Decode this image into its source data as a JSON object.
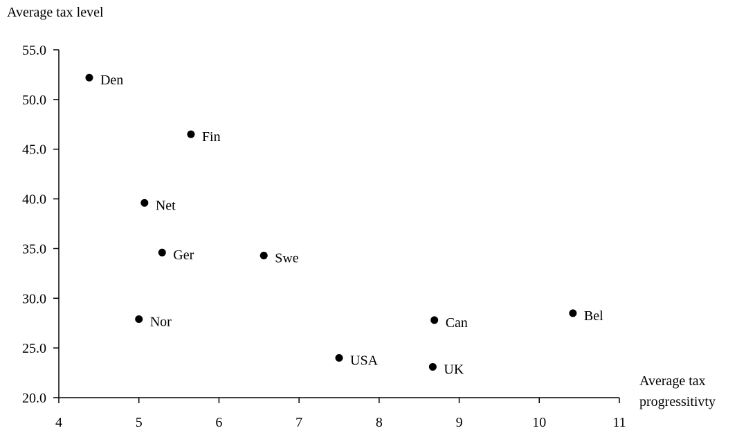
{
  "chart_data": {
    "type": "scatter",
    "ylabel": "Average tax level",
    "xlabel_lines": [
      "Average tax",
      "progressitivty"
    ],
    "xlim": [
      4,
      11
    ],
    "ylim": [
      20,
      55
    ],
    "x_ticks": [
      "4",
      "5",
      "6",
      "7",
      "8",
      "9",
      "10",
      "11"
    ],
    "y_ticks": [
      "20.0",
      "25.0",
      "30.0",
      "35.0",
      "40.0",
      "45.0",
      "50.0",
      "55.0"
    ],
    "grid": false,
    "points": [
      {
        "label": "Den",
        "x": 4.38,
        "y": 52.2
      },
      {
        "label": "Fin",
        "x": 5.65,
        "y": 46.5
      },
      {
        "label": "Net",
        "x": 5.07,
        "y": 39.6
      },
      {
        "label": "Ger",
        "x": 5.29,
        "y": 34.6
      },
      {
        "label": "Swe",
        "x": 6.56,
        "y": 34.3
      },
      {
        "label": "Nor",
        "x": 5.0,
        "y": 27.9
      },
      {
        "label": "Can",
        "x": 8.69,
        "y": 27.8
      },
      {
        "label": "Bel",
        "x": 10.42,
        "y": 28.5
      },
      {
        "label": "USA",
        "x": 7.5,
        "y": 24.0
      },
      {
        "label": "UK",
        "x": 8.67,
        "y": 23.1
      }
    ],
    "marker_color": "#000000"
  }
}
